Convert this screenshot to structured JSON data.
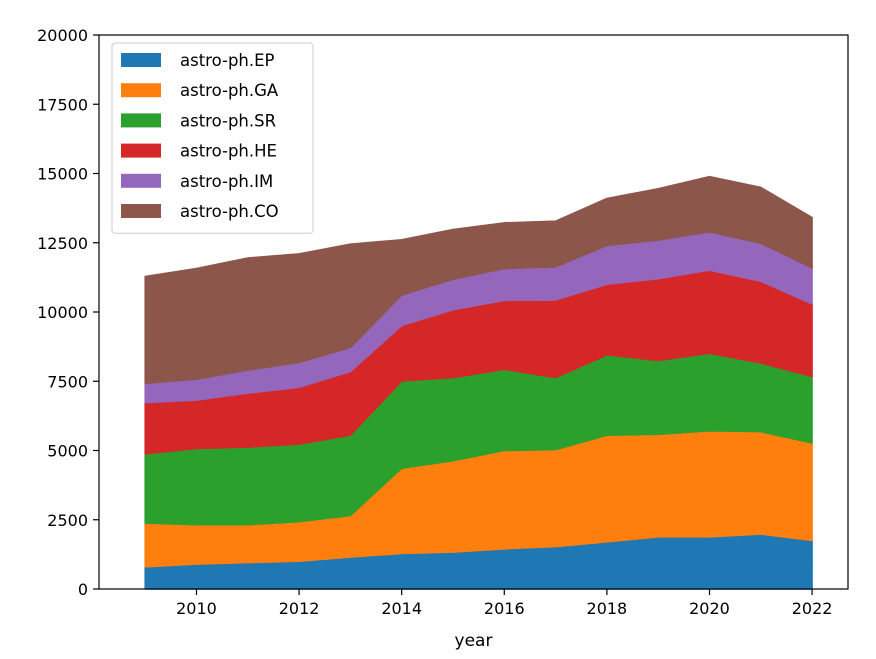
{
  "chart_data": {
    "type": "area",
    "stacked": true,
    "title": "",
    "xlabel": "year",
    "ylabel": "",
    "x": [
      2009,
      2010,
      2011,
      2012,
      2013,
      2014,
      2015,
      2016,
      2017,
      2018,
      2019,
      2020,
      2021,
      2022
    ],
    "xlim": [
      2008.1,
      2022.7
    ],
    "ylim": [
      0,
      20000
    ],
    "xticks": [
      2010,
      2012,
      2014,
      2016,
      2018,
      2020,
      2022
    ],
    "yticks": [
      0,
      2500,
      5000,
      7500,
      10000,
      12500,
      15000,
      17500,
      20000
    ],
    "grid": false,
    "legend_position": "top-left",
    "series": [
      {
        "name": "astro-ph.EP",
        "color": "#1f77b4",
        "values": [
          800,
          900,
          950,
          1000,
          1150,
          1280,
          1330,
          1450,
          1530,
          1700,
          1880,
          1880,
          1980,
          1750
        ]
      },
      {
        "name": "astro-ph.GA",
        "color": "#ff7f0e",
        "values": [
          1580,
          1420,
          1370,
          1430,
          1500,
          3080,
          3300,
          3550,
          3500,
          3850,
          3700,
          3830,
          3700,
          3520
        ]
      },
      {
        "name": "astro-ph.SR",
        "color": "#2ca02c",
        "values": [
          2500,
          2750,
          2800,
          2800,
          2900,
          3150,
          3000,
          2930,
          2600,
          2900,
          2670,
          2800,
          2480,
          2400
        ]
      },
      {
        "name": "astro-ph.HE",
        "color": "#d62728",
        "values": [
          1850,
          1750,
          1950,
          2050,
          2300,
          2000,
          2450,
          2490,
          2800,
          2550,
          2950,
          3000,
          2950,
          2620
        ]
      },
      {
        "name": "astro-ph.IM",
        "color": "#9467bd",
        "values": [
          700,
          750,
          830,
          900,
          870,
          1100,
          1100,
          1150,
          1200,
          1400,
          1400,
          1380,
          1370,
          1300
        ]
      },
      {
        "name": "astro-ph.CO",
        "color": "#8c564b",
        "values": [
          3850,
          4000,
          4050,
          3920,
          3730,
          2000,
          1800,
          1650,
          1650,
          1700,
          1850,
          2000,
          2020,
          1820
        ]
      }
    ]
  }
}
